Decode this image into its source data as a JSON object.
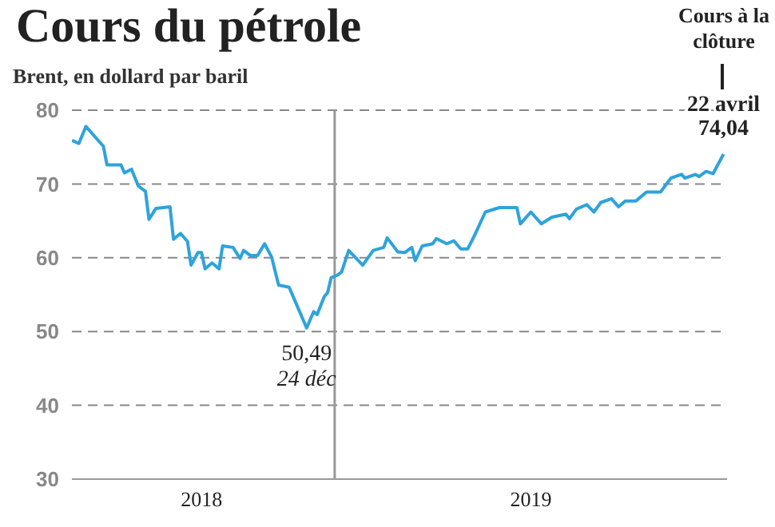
{
  "chart_data": {
    "type": "line",
    "title": "Cours du pétrole",
    "subtitle": "Brent, en dollard par baril",
    "x": [
      "2018-10-18",
      "2018-10-20",
      "2018-10-22",
      "2018-10-27",
      "2018-10-28",
      "2018-11-01",
      "2018-11-02",
      "2018-11-04",
      "2018-11-06",
      "2018-11-08",
      "2018-11-09",
      "2018-11-11",
      "2018-11-15",
      "2018-11-16",
      "2018-11-18",
      "2018-11-20",
      "2018-11-21",
      "2018-11-23",
      "2018-11-24",
      "2018-11-25",
      "2018-11-27",
      "2018-11-29",
      "2018-11-30",
      "2018-12-03",
      "2018-12-05",
      "2018-12-06",
      "2018-12-08",
      "2018-12-10",
      "2018-12-12",
      "2018-12-14",
      "2018-12-16",
      "2018-12-19",
      "2018-12-21",
      "2018-12-24",
      "2018-12-26",
      "2018-12-27",
      "2018-12-28",
      "2018-12-29",
      "2018-12-30",
      "2018-12-31",
      "2019-01-02",
      "2019-01-03",
      "2019-01-05",
      "2019-01-09",
      "2019-01-12",
      "2019-01-15",
      "2019-01-16",
      "2019-01-19",
      "2019-01-21",
      "2019-01-23",
      "2019-01-24",
      "2019-01-26",
      "2019-01-29",
      "2019-01-30",
      "2019-02-02",
      "2019-02-04",
      "2019-02-06",
      "2019-02-08",
      "2019-02-10",
      "2019-02-13",
      "2019-02-17",
      "2019-02-22",
      "2019-02-23",
      "2019-02-26",
      "2019-03-01",
      "2019-03-04",
      "2019-03-08",
      "2019-03-09",
      "2019-03-11",
      "2019-03-14",
      "2019-03-16",
      "2019-03-18",
      "2019-03-21",
      "2019-03-23",
      "2019-03-25",
      "2019-03-28",
      "2019-03-31",
      "2019-04-04",
      "2019-04-07",
      "2019-04-10",
      "2019-04-11",
      "2019-04-14",
      "2019-04-15",
      "2019-04-17",
      "2019-04-19",
      "2019-04-22"
    ],
    "series": [
      {
        "color": "#2ea3dc",
        "values": [
          75.9,
          75.5,
          77.8,
          75.1,
          72.6,
          72.6,
          71.5,
          72.0,
          69.7,
          69.0,
          65.2,
          66.7,
          66.9,
          62.5,
          63.3,
          62.2,
          59.0,
          60.7,
          60.7,
          58.5,
          59.3,
          58.5,
          61.6,
          61.4,
          59.9,
          61.0,
          60.3,
          60.3,
          61.9,
          60.1,
          56.3,
          56.0,
          53.8,
          50.49,
          52.7,
          52.3,
          53.5,
          54.7,
          55.3,
          57.3,
          57.7,
          58.1,
          61.0,
          59.0,
          61.0,
          61.4,
          62.7,
          60.8,
          60.7,
          61.4,
          59.6,
          61.6,
          61.9,
          62.6,
          61.9,
          62.3,
          61.2,
          61.2,
          63.1,
          66.2,
          66.8,
          66.8,
          64.6,
          66.2,
          64.6,
          65.5,
          65.9,
          65.3,
          66.6,
          67.2,
          66.2,
          67.5,
          68.0,
          66.9,
          67.7,
          67.7,
          68.9,
          68.9,
          70.8,
          71.3,
          70.8,
          71.3,
          71.0,
          71.7,
          71.4,
          74.04
        ]
      }
    ],
    "xlim": [
      "2018-10-18",
      "2019-04-23"
    ],
    "xticks": [
      {
        "value": "2018-11-24",
        "label": "2018"
      },
      {
        "value": "2019-02-26",
        "label": "2019"
      }
    ],
    "ylim": [
      30,
      80
    ],
    "yticks": [
      30,
      40,
      50,
      60,
      70,
      80
    ],
    "grid": "y",
    "ref_lines": [
      {
        "axis": "x",
        "value": "2019-01-01",
        "color": "#999999"
      }
    ],
    "annotations": [
      {
        "text": "50,49",
        "x": "2018-12-24",
        "y": 50.49
      },
      {
        "text": "24 déc",
        "x": "2018-12-24",
        "y": 50.49
      },
      {
        "text": "22 avril",
        "x": "2019-04-22",
        "y": 74.04
      },
      {
        "text": "74,04",
        "x": "2019-04-22",
        "y": 74.04
      },
      "Cours à la clôture"
    ]
  }
}
